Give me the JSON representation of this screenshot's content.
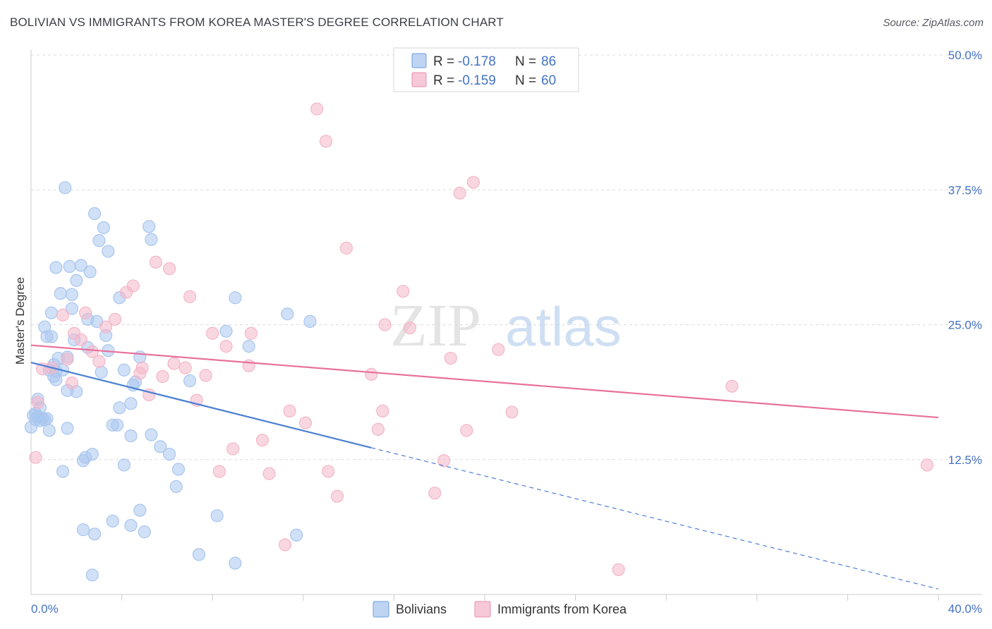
{
  "title": "BOLIVIAN VS IMMIGRANTS FROM KOREA MASTER'S DEGREE CORRELATION CHART",
  "source": "Source: ZipAtlas.com",
  "watermark": {
    "zip": "ZIP",
    "atlas": "atlas"
  },
  "chart_data": {
    "type": "scatter",
    "xlabel": "",
    "ylabel": "Master's Degree",
    "xlim": [
      0,
      40
    ],
    "ylim": [
      0,
      50
    ],
    "x_tick_labels": [
      "0.0%",
      "40.0%"
    ],
    "y_ticks": [
      12.5,
      25.0,
      37.5,
      50.0
    ],
    "y_tick_labels": [
      "12.5%",
      "25.0%",
      "37.5%",
      "50.0%"
    ],
    "grid": true,
    "legend_position": "top-center",
    "stats": [
      {
        "r_label": "R =",
        "r_value": "-0.178",
        "n_label": "N =",
        "n_value": "86"
      },
      {
        "r_label": "R =",
        "r_value": "-0.159",
        "n_label": "N =",
        "n_value": "60"
      }
    ],
    "series": [
      {
        "name": "Bolivians",
        "color": "#4a7fd4",
        "fill": "#a9c6ef",
        "trend": {
          "x_start": 0,
          "y_start": 21.5,
          "x_solid_end": 15,
          "y_solid_end": 13.6,
          "x_end": 40,
          "y_end": 0.5
        },
        "points": [
          [
            1.5,
            37.7
          ],
          [
            2.8,
            35.3
          ],
          [
            3.2,
            34.0
          ],
          [
            5.2,
            34.1
          ],
          [
            3.0,
            32.8
          ],
          [
            5.3,
            32.9
          ],
          [
            3.4,
            31.8
          ],
          [
            1.1,
            30.3
          ],
          [
            1.7,
            30.4
          ],
          [
            2.2,
            30.5
          ],
          [
            2.6,
            29.9
          ],
          [
            2.0,
            29.1
          ],
          [
            1.3,
            27.9
          ],
          [
            1.8,
            27.8
          ],
          [
            3.9,
            27.5
          ],
          [
            9.0,
            27.5
          ],
          [
            0.9,
            26.1
          ],
          [
            1.8,
            26.5
          ],
          [
            11.3,
            26.0
          ],
          [
            12.3,
            25.3
          ],
          [
            2.5,
            25.5
          ],
          [
            2.9,
            25.3
          ],
          [
            0.6,
            24.8
          ],
          [
            0.7,
            23.9
          ],
          [
            0.9,
            23.9
          ],
          [
            3.3,
            24.0
          ],
          [
            8.6,
            24.4
          ],
          [
            1.9,
            23.6
          ],
          [
            2.5,
            22.9
          ],
          [
            3.4,
            22.6
          ],
          [
            9.6,
            23.0
          ],
          [
            1.6,
            22.0
          ],
          [
            1.2,
            21.9
          ],
          [
            4.8,
            22.0
          ],
          [
            1.0,
            21.3
          ],
          [
            0.8,
            20.8
          ],
          [
            1.1,
            20.7
          ],
          [
            1.4,
            20.8
          ],
          [
            3.1,
            20.6
          ],
          [
            4.1,
            20.8
          ],
          [
            1.0,
            20.2
          ],
          [
            1.1,
            19.9
          ],
          [
            4.6,
            19.7
          ],
          [
            4.5,
            19.4
          ],
          [
            7.0,
            19.8
          ],
          [
            1.6,
            18.9
          ],
          [
            2.0,
            18.8
          ],
          [
            0.3,
            18.1
          ],
          [
            4.4,
            17.7
          ],
          [
            3.9,
            17.3
          ],
          [
            0.2,
            16.8
          ],
          [
            0.3,
            16.5
          ],
          [
            0.4,
            16.1
          ],
          [
            0.6,
            16.2
          ],
          [
            0.5,
            16.3
          ],
          [
            0.2,
            16.2
          ],
          [
            0.7,
            16.3
          ],
          [
            3.6,
            15.7
          ],
          [
            3.8,
            15.7
          ],
          [
            1.6,
            15.4
          ],
          [
            0.8,
            15.2
          ],
          [
            4.4,
            14.7
          ],
          [
            5.3,
            14.8
          ],
          [
            5.7,
            13.7
          ],
          [
            6.1,
            13.0
          ],
          [
            2.7,
            13.0
          ],
          [
            2.4,
            12.7
          ],
          [
            2.3,
            12.4
          ],
          [
            4.1,
            12.0
          ],
          [
            6.5,
            11.6
          ],
          [
            1.4,
            11.4
          ],
          [
            6.4,
            10.0
          ],
          [
            4.8,
            7.8
          ],
          [
            8.2,
            7.3
          ],
          [
            3.6,
            6.8
          ],
          [
            4.4,
            6.4
          ],
          [
            2.3,
            6.0
          ],
          [
            5.0,
            5.8
          ],
          [
            2.8,
            5.6
          ],
          [
            11.7,
            5.5
          ],
          [
            7.4,
            3.7
          ],
          [
            9.0,
            2.9
          ],
          [
            2.7,
            1.8
          ],
          [
            0.0,
            15.5
          ],
          [
            0.4,
            17.3
          ],
          [
            0.1,
            16.6
          ]
        ]
      },
      {
        "name": "Immigrants from Korea",
        "color": "#e8709a",
        "fill": "#f4b6c9",
        "trend": {
          "x_start": 0,
          "y_start": 23.1,
          "x_end": 40,
          "y_end": 16.4
        },
        "points": [
          [
            12.6,
            45.0
          ],
          [
            13.0,
            42.0
          ],
          [
            19.5,
            38.2
          ],
          [
            18.9,
            37.2
          ],
          [
            13.9,
            32.1
          ],
          [
            5.5,
            30.8
          ],
          [
            6.1,
            30.2
          ],
          [
            4.5,
            28.6
          ],
          [
            4.2,
            28.0
          ],
          [
            7.0,
            27.6
          ],
          [
            16.4,
            28.1
          ],
          [
            1.4,
            25.9
          ],
          [
            2.4,
            26.1
          ],
          [
            3.7,
            25.5
          ],
          [
            3.3,
            24.8
          ],
          [
            15.6,
            25.0
          ],
          [
            16.7,
            24.7
          ],
          [
            8.0,
            24.2
          ],
          [
            9.7,
            24.2
          ],
          [
            2.2,
            23.6
          ],
          [
            8.6,
            23.0
          ],
          [
            20.6,
            22.7
          ],
          [
            18.5,
            21.9
          ],
          [
            2.7,
            22.5
          ],
          [
            1.6,
            21.8
          ],
          [
            3.0,
            21.6
          ],
          [
            6.3,
            21.4
          ],
          [
            9.6,
            21.2
          ],
          [
            6.8,
            21.0
          ],
          [
            4.9,
            21.0
          ],
          [
            0.5,
            20.9
          ],
          [
            4.8,
            20.5
          ],
          [
            5.8,
            20.2
          ],
          [
            7.7,
            20.3
          ],
          [
            15.0,
            20.4
          ],
          [
            1.8,
            19.6
          ],
          [
            30.9,
            19.3
          ],
          [
            5.2,
            18.5
          ],
          [
            7.3,
            18.0
          ],
          [
            0.3,
            17.8
          ],
          [
            11.4,
            17.0
          ],
          [
            15.5,
            17.0
          ],
          [
            21.2,
            16.9
          ],
          [
            12.1,
            15.9
          ],
          [
            15.3,
            15.3
          ],
          [
            19.2,
            15.2
          ],
          [
            10.2,
            14.3
          ],
          [
            8.9,
            13.5
          ],
          [
            18.2,
            12.4
          ],
          [
            0.2,
            12.7
          ],
          [
            8.3,
            11.4
          ],
          [
            13.1,
            11.4
          ],
          [
            10.5,
            11.2
          ],
          [
            39.5,
            12.0
          ],
          [
            13.5,
            9.1
          ],
          [
            17.8,
            9.4
          ],
          [
            11.2,
            4.6
          ],
          [
            25.9,
            2.3
          ],
          [
            1.9,
            24.2
          ],
          [
            0.9,
            21.0
          ]
        ]
      }
    ]
  }
}
